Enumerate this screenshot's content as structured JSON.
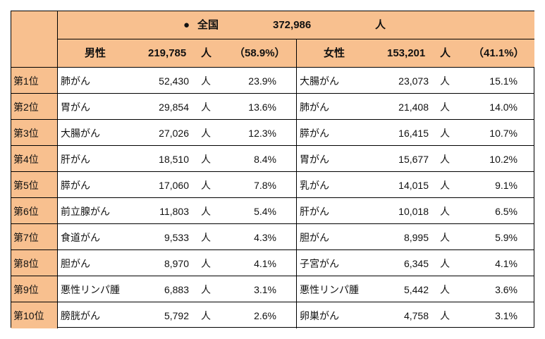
{
  "colors": {
    "header_fill": "#F8C08F",
    "border": "#000000"
  },
  "total": {
    "bullet": "●",
    "label": "全国",
    "count": "372,986",
    "unit": "人"
  },
  "male": {
    "label": "男性",
    "count": "219,785",
    "unit": "人",
    "pct": "（58.9%）"
  },
  "female": {
    "label": "女性",
    "count": "153,201",
    "unit": "人",
    "pct": "（41.1%）"
  },
  "rows": [
    {
      "rank": "第1位",
      "m_name": "肺がん",
      "m_count": "52,430",
      "m_unit": "人",
      "m_pct": "23.9%",
      "f_name": "大腸がん",
      "f_count": "23,073",
      "f_unit": "人",
      "f_pct": "15.1%"
    },
    {
      "rank": "第2位",
      "m_name": "胃がん",
      "m_count": "29,854",
      "m_unit": "人",
      "m_pct": "13.6%",
      "f_name": "肺がん",
      "f_count": "21,408",
      "f_unit": "人",
      "f_pct": "14.0%"
    },
    {
      "rank": "第3位",
      "m_name": "大腸がん",
      "m_count": "27,026",
      "m_unit": "人",
      "m_pct": "12.3%",
      "f_name": "膵がん",
      "f_count": "16,415",
      "f_unit": "人",
      "f_pct": "10.7%"
    },
    {
      "rank": "第4位",
      "m_name": "肝がん",
      "m_count": "18,510",
      "m_unit": "人",
      "m_pct": "8.4%",
      "f_name": "胃がん",
      "f_count": "15,677",
      "f_unit": "人",
      "f_pct": "10.2%"
    },
    {
      "rank": "第5位",
      "m_name": "膵がん",
      "m_count": "17,060",
      "m_unit": "人",
      "m_pct": "7.8%",
      "f_name": "乳がん",
      "f_count": "14,015",
      "f_unit": "人",
      "f_pct": "9.1%"
    },
    {
      "rank": "第6位",
      "m_name": "前立腺がん",
      "m_count": "11,803",
      "m_unit": "人",
      "m_pct": "5.4%",
      "f_name": "肝がん",
      "f_count": "10,018",
      "f_unit": "人",
      "f_pct": "6.5%"
    },
    {
      "rank": "第7位",
      "m_name": "食道がん",
      "m_count": "9,533",
      "m_unit": "人",
      "m_pct": "4.3%",
      "f_name": "胆がん",
      "f_count": "8,995",
      "f_unit": "人",
      "f_pct": "5.9%"
    },
    {
      "rank": "第8位",
      "m_name": "胆がん",
      "m_count": "8,970",
      "m_unit": "人",
      "m_pct": "4.1%",
      "f_name": "子宮がん",
      "f_count": "6,345",
      "f_unit": "人",
      "f_pct": "4.1%"
    },
    {
      "rank": "第9位",
      "m_name": "悪性リンパ腫",
      "m_count": "6,883",
      "m_unit": "人",
      "m_pct": "3.1%",
      "f_name": "悪性リンパ腫",
      "f_count": "5,442",
      "f_unit": "人",
      "f_pct": "3.6%"
    },
    {
      "rank": "第10位",
      "m_name": "膀胱がん",
      "m_count": "5,792",
      "m_unit": "人",
      "m_pct": "2.6%",
      "f_name": "卵巣がん",
      "f_count": "4,758",
      "f_unit": "人",
      "f_pct": "3.1%"
    }
  ]
}
